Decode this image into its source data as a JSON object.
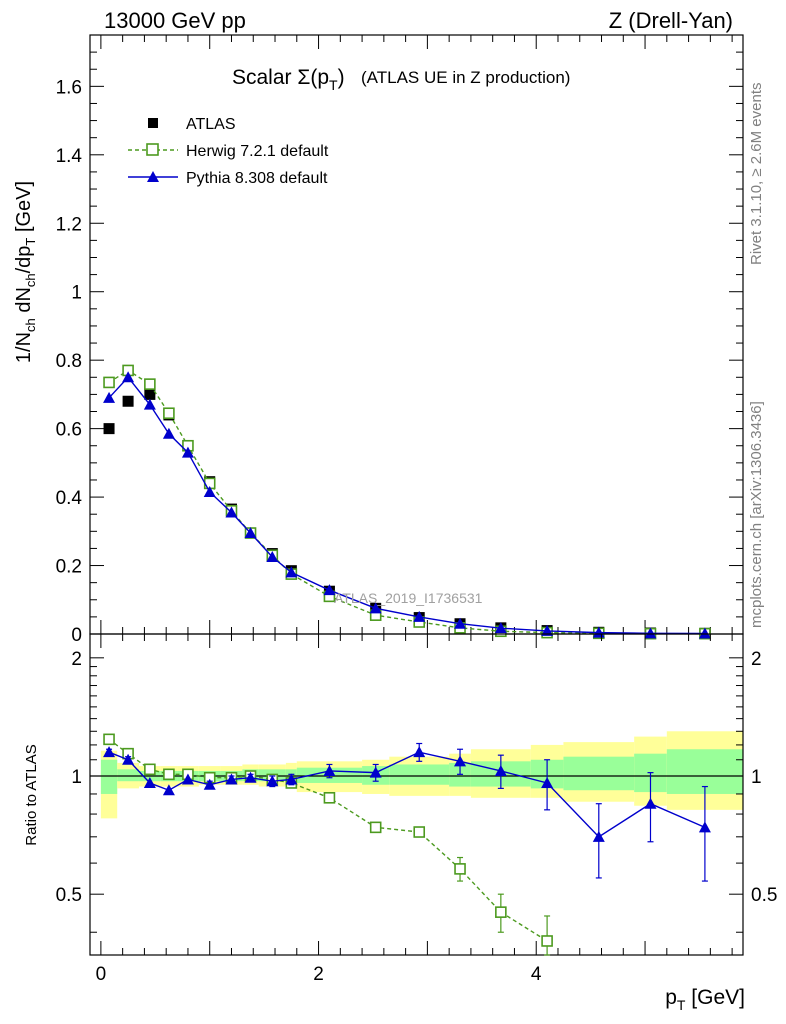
{
  "header": {
    "energy_label": "13000 GeV pp",
    "process_label": "Z (Drell-Yan)",
    "side_rivet": "Rivet 3.1.10, ≥ 2.6M events",
    "side_mcplots": "mcplots.cern.ch [arXiv:1306.3436]",
    "watermark": "ATLAS_2019_I1736531"
  },
  "chart_data": [
    {
      "type": "scatter",
      "panel": "main",
      "title_prefix": "Scalar Σ(p",
      "title_sub": "T",
      "title_suffix": ")",
      "title_extra": "(ATLAS UE in Z production)",
      "ylabel": "1/N_ch dN_ch/dp_T [GeV]",
      "ylim": [
        0,
        1.75
      ],
      "xlim": [
        -0.1,
        5.9
      ],
      "yticks": [
        0,
        0.2,
        0.4,
        0.6,
        0.8,
        1,
        1.2,
        1.4,
        1.6
      ],
      "ytick_labels": [
        "0",
        "0.2",
        "0.4",
        "0.6",
        "0.8",
        "1",
        "1.2",
        "1.4",
        "1.6"
      ],
      "x": [
        0.075,
        0.25,
        0.45,
        0.625,
        0.8,
        1.0,
        1.2,
        1.375,
        1.575,
        1.75,
        2.1,
        2.525,
        2.925,
        3.3,
        3.675,
        4.1,
        4.575,
        5.05,
        5.55
      ],
      "series": [
        {
          "name": "ATLAS",
          "color": "#000000",
          "marker": "filled-square",
          "values": [
            0.6,
            0.68,
            0.7,
            0.64,
            0.55,
            0.445,
            0.365,
            0.295,
            0.235,
            0.185,
            0.125,
            0.075,
            0.048,
            0.03,
            0.018,
            0.01,
            0.005,
            0.003,
            0.002
          ]
        },
        {
          "name": "Herwig 7.2.1 default",
          "color": "#4c9a1f",
          "marker": "open-square",
          "dashed": true,
          "values": [
            0.735,
            0.77,
            0.73,
            0.645,
            0.55,
            0.44,
            0.36,
            0.295,
            0.23,
            0.175,
            0.11,
            0.055,
            0.035,
            0.018,
            0.008,
            0.004,
            0.002,
            0.001,
            0.001
          ]
        },
        {
          "name": "Pythia 8.308 default",
          "color": "#0000cc",
          "marker": "filled-triangle",
          "values": [
            0.69,
            0.75,
            0.67,
            0.585,
            0.53,
            0.415,
            0.355,
            0.295,
            0.225,
            0.18,
            0.128,
            0.075,
            0.05,
            0.03,
            0.017,
            0.009,
            0.004,
            0.002,
            0.0015
          ]
        }
      ]
    },
    {
      "type": "scatter",
      "panel": "ratio",
      "ylabel": "Ratio to ATLAS",
      "xlabel": "p_T [GeV]",
      "ylim": [
        0.35,
        2.3
      ],
      "xlim": [
        -0.1,
        5.9
      ],
      "yticks": [
        0.5,
        1,
        2
      ],
      "ytick_labels": [
        "0.5",
        "1",
        "2"
      ],
      "xticks": [
        0,
        2,
        4
      ],
      "xtick_labels": [
        "0",
        "2",
        "4"
      ],
      "x": [
        0.075,
        0.25,
        0.45,
        0.625,
        0.8,
        1.0,
        1.2,
        1.375,
        1.575,
        1.75,
        2.1,
        2.525,
        2.925,
        3.3,
        3.675,
        4.1,
        4.575,
        5.05,
        5.55
      ],
      "bin_edges": [
        0.0,
        0.15,
        0.35,
        0.55,
        0.7,
        0.9,
        1.1,
        1.3,
        1.45,
        1.7,
        1.8,
        2.4,
        2.65,
        3.2,
        3.4,
        3.95,
        4.25,
        4.9,
        5.2,
        5.9
      ],
      "band_yellow_low": [
        0.78,
        0.93,
        0.94,
        0.94,
        0.94,
        0.95,
        0.95,
        0.95,
        0.94,
        0.93,
        0.91,
        0.9,
        0.89,
        0.89,
        0.88,
        0.88,
        0.86,
        0.84,
        0.82
      ],
      "band_yellow_high": [
        1.16,
        1.08,
        1.06,
        1.06,
        1.06,
        1.06,
        1.06,
        1.07,
        1.07,
        1.08,
        1.09,
        1.1,
        1.12,
        1.14,
        1.17,
        1.2,
        1.22,
        1.26,
        1.3
      ],
      "band_green_low": [
        0.9,
        0.97,
        0.97,
        0.97,
        0.97,
        0.97,
        0.97,
        0.97,
        0.97,
        0.97,
        0.96,
        0.95,
        0.95,
        0.94,
        0.94,
        0.93,
        0.92,
        0.91,
        0.9
      ],
      "band_green_high": [
        1.1,
        1.04,
        1.03,
        1.03,
        1.03,
        1.03,
        1.03,
        1.04,
        1.04,
        1.04,
        1.05,
        1.06,
        1.07,
        1.08,
        1.09,
        1.1,
        1.12,
        1.14,
        1.17
      ],
      "band_colors": {
        "yellow": "#ffff99",
        "green": "#99ff99"
      },
      "series": [
        {
          "name": "Herwig 7.2.1 default",
          "color": "#4c9a1f",
          "marker": "open-square",
          "dashed": true,
          "values": [
            1.24,
            1.14,
            1.04,
            1.01,
            1.01,
            0.99,
            0.99,
            1.0,
            0.98,
            0.96,
            0.88,
            0.74,
            0.72,
            0.58,
            0.45,
            0.38,
            null,
            null,
            null
          ],
          "errors": [
            0.03,
            0.02,
            0.01,
            0.01,
            0.01,
            0.01,
            0.01,
            0.01,
            0.01,
            0.01,
            0.01,
            0.01,
            0.02,
            0.04,
            0.05,
            0.06,
            null,
            null,
            null
          ]
        },
        {
          "name": "Pythia 8.308 default",
          "color": "#0000cc",
          "marker": "filled-triangle",
          "values": [
            1.15,
            1.1,
            0.96,
            0.92,
            0.98,
            0.95,
            0.98,
            0.99,
            0.97,
            0.98,
            1.03,
            1.02,
            1.15,
            1.09,
            1.03,
            0.96,
            0.7,
            0.85,
            0.74
          ],
          "errors": [
            0.02,
            0.02,
            0.01,
            0.01,
            0.01,
            0.02,
            0.02,
            0.02,
            0.03,
            0.03,
            0.04,
            0.05,
            0.06,
            0.08,
            0.1,
            0.14,
            0.15,
            0.17,
            0.2
          ]
        }
      ]
    }
  ]
}
